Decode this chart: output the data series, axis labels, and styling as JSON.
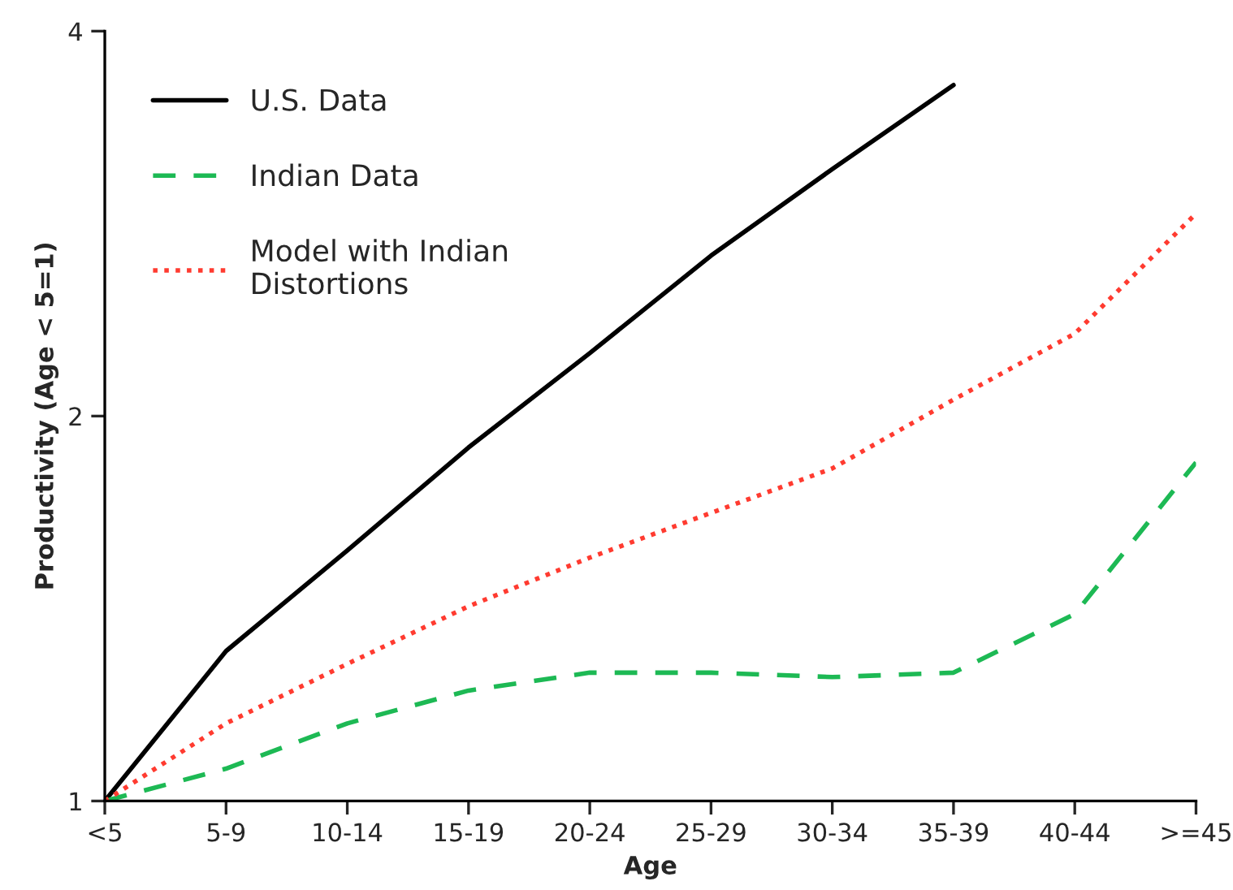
{
  "chart_data": {
    "type": "line",
    "xlabel": "Age",
    "ylabel": "Productivity (Age < 5=1)",
    "categories": [
      "<5",
      "5-9",
      "10-14",
      "15-19",
      "20-24",
      "25-29",
      "30-34",
      "35-39",
      "40-44",
      ">=45"
    ],
    "series": [
      {
        "name": "U.S. Data",
        "color": "#000000",
        "line_style": "solid",
        "values": [
          1,
          1.31,
          1.57,
          1.89,
          2.24,
          2.67,
          3.12,
          3.63,
          null,
          null
        ]
      },
      {
        "name": "Indian Data",
        "color": "#1db954",
        "line_style": "dashed",
        "values": [
          1,
          1.06,
          1.15,
          1.22,
          1.26,
          1.26,
          1.25,
          1.26,
          1.4,
          1.84
        ]
      },
      {
        "name": "Model with Indian\nDistortions",
        "color": "#ff3b30",
        "line_style": "dotted",
        "values": [
          1,
          1.15,
          1.28,
          1.42,
          1.55,
          1.68,
          1.82,
          2.06,
          2.32,
          2.88
        ]
      }
    ],
    "log": "y",
    "ylim": [
      1,
      4
    ],
    "yticks": [
      1,
      2,
      4
    ],
    "grid": false,
    "legend": "top left",
    "marker": "none"
  }
}
